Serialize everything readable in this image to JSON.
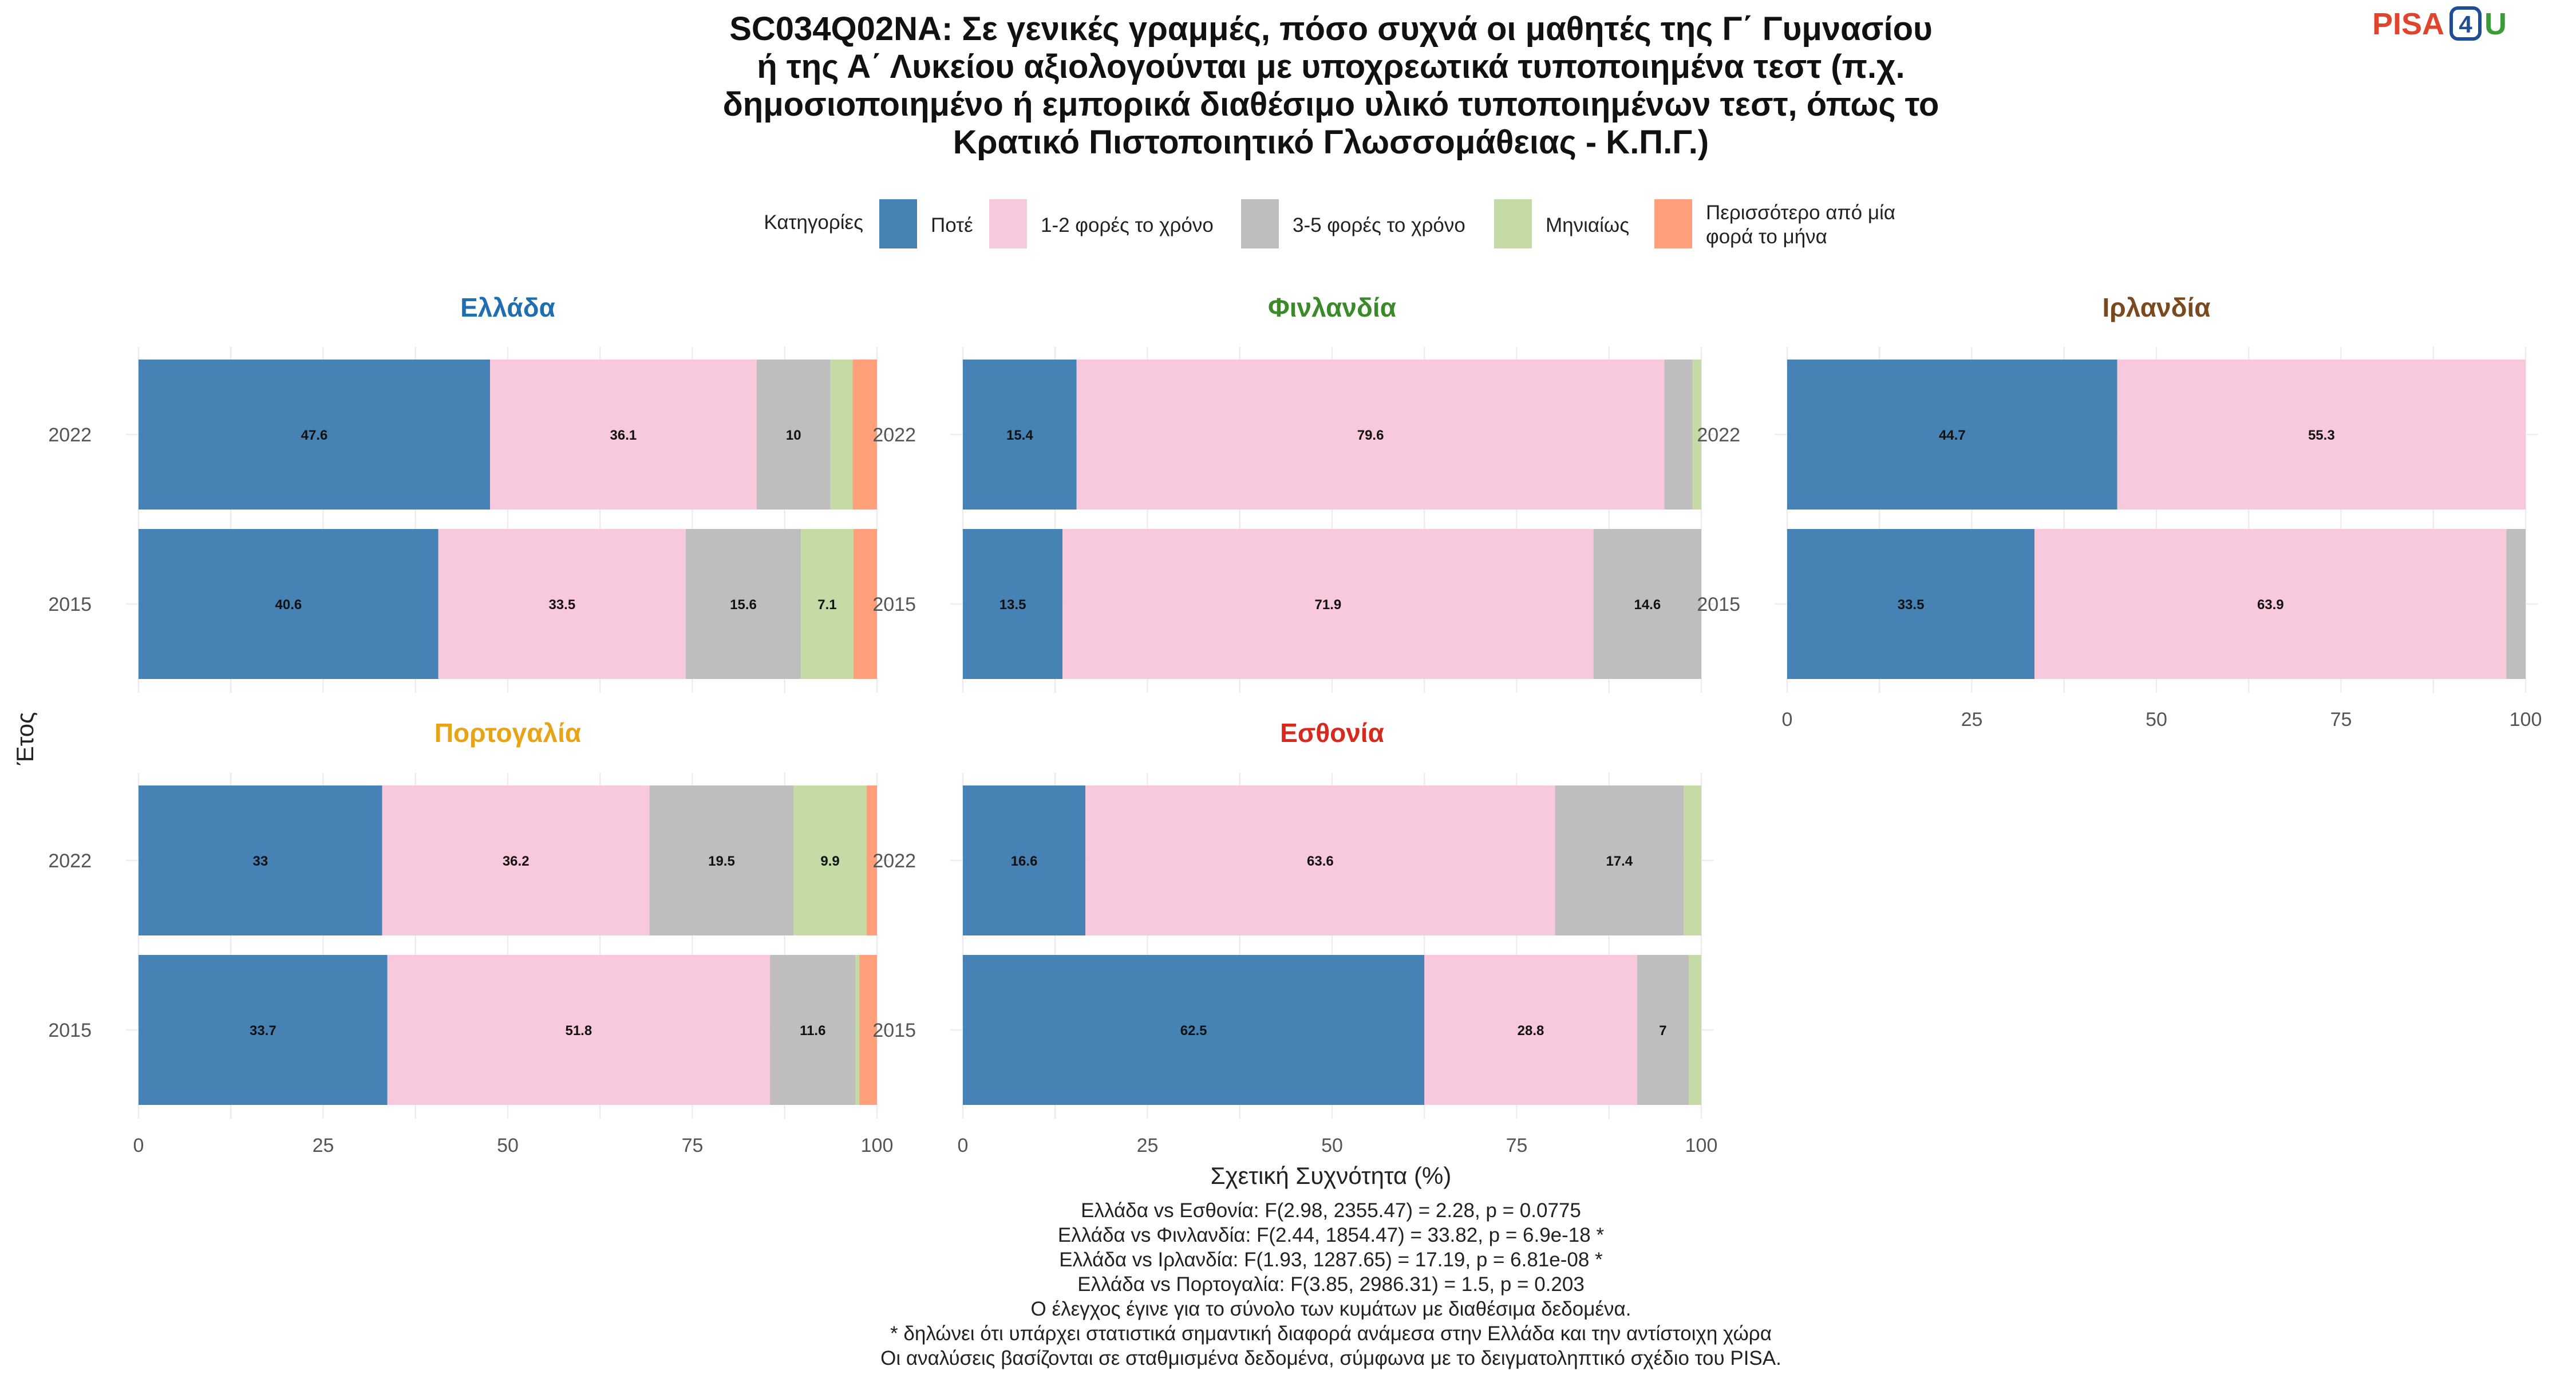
{
  "logo": {
    "brand": "PISA",
    "digit": "4",
    "suffix": "U"
  },
  "colors": {
    "Ποτέ": "#4682b4",
    "1-2 φορές το χρόνο": "#f8c8dc",
    "3-5 φορές το χρόνο": "#bebebe",
    "Μηνιαίως": "#c5dba5",
    "Περισσότερο από μία φορά το μήνα": "#ffa07a"
  },
  "chart_data": {
    "type": "bar",
    "orientation": "horizontal",
    "stacked": true,
    "title_lines": [
      "SC034Q02NA: Σε γενικές γραμμές, πόσο συχνά οι μαθητές της Γ΄ Γυμνασίου",
      "ή της Α΄ Λυκείου αξιολογούνται με υποχρεωτικά τυποποιημένα τεστ (π.χ.",
      "δημοσιοποιημένο ή εμπορικά διαθέσιμο υλικό τυποποιημένων τεστ, όπως το",
      "Κρατικό Πιστοποιητικό Γλωσσομάθειας - Κ.Π.Γ.)"
    ],
    "legend": {
      "title": "Κατηγορίες",
      "placement": "top",
      "entries": [
        {
          "key": "Ποτέ",
          "label": [
            "Ποτέ"
          ]
        },
        {
          "key": "1-2 φορές το χρόνο",
          "label": [
            "1-2 φορές το χρόνο"
          ]
        },
        {
          "key": "3-5 φορές το χρόνο",
          "label": [
            "3-5 φορές το χρόνο"
          ]
        },
        {
          "key": "Μηνιαίως",
          "label": [
            "Μηνιαίως"
          ]
        },
        {
          "key": "Περισσότερο από μία φορά το μήνα",
          "label": [
            "Περισσότερο από μία",
            "φορά το μήνα"
          ]
        }
      ]
    },
    "xlabel": "Σχετική Συχνότητα (%)",
    "ylabel": "Έτος",
    "xlim": [
      0,
      100
    ],
    "xticks": [
      0,
      25,
      50,
      75,
      100
    ],
    "grid": true,
    "categories": [
      "Ποτέ",
      "1-2 φορές το χρόνο",
      "3-5 φορές το χρόνο",
      "Μηνιαίως",
      "Περισσότερο από μία φορά το μήνα"
    ],
    "facets": [
      {
        "country": "Ελλάδα",
        "title_color": "#1f6fb0",
        "show_x_axis": false,
        "rows": [
          {
            "year": "2022",
            "values": [
              47.6,
              36.1,
              10,
              3.0,
              3.3
            ],
            "labels": [
              "47.6",
              "36.1",
              "10",
              "",
              ""
            ]
          },
          {
            "year": "2015",
            "values": [
              40.6,
              33.5,
              15.6,
              7.1,
              3.2
            ],
            "labels": [
              "40.6",
              "33.5",
              "15.6",
              "7.1",
              ""
            ]
          }
        ]
      },
      {
        "country": "Φινλανδία",
        "title_color": "#3b8a2a",
        "show_x_axis": false,
        "rows": [
          {
            "year": "2022",
            "values": [
              15.4,
              79.6,
              3.8,
              1.2,
              0
            ],
            "labels": [
              "15.4",
              "79.6",
              "",
              "",
              ""
            ]
          },
          {
            "year": "2015",
            "values": [
              13.5,
              71.9,
              14.6,
              0,
              0
            ],
            "labels": [
              "13.5",
              "71.9",
              "14.6",
              "",
              ""
            ]
          }
        ]
      },
      {
        "country": "Ιρλανδία",
        "title_color": "#7a4a1e",
        "show_x_axis": true,
        "rows": [
          {
            "year": "2022",
            "values": [
              44.7,
              55.3,
              0,
              0,
              0
            ],
            "labels": [
              "44.7",
              "55.3",
              "",
              "",
              ""
            ]
          },
          {
            "year": "2015",
            "values": [
              33.5,
              63.9,
              2.6,
              0,
              0
            ],
            "labels": [
              "33.5",
              "63.9",
              "",
              "",
              ""
            ]
          }
        ]
      },
      {
        "country": "Πορτογαλία",
        "title_color": "#e8a317",
        "show_x_axis": true,
        "rows": [
          {
            "year": "2022",
            "values": [
              33,
              36.2,
              19.5,
              9.9,
              1.4
            ],
            "labels": [
              "33",
              "36.2",
              "19.5",
              "9.9",
              ""
            ]
          },
          {
            "year": "2015",
            "values": [
              33.7,
              51.8,
              11.6,
              0.5,
              2.4
            ],
            "labels": [
              "33.7",
              "51.8",
              "11.6",
              "",
              ""
            ]
          }
        ]
      },
      {
        "country": "Εσθονία",
        "title_color": "#d9281c",
        "show_x_axis": true,
        "rows": [
          {
            "year": "2022",
            "values": [
              16.6,
              63.6,
              17.4,
              2.4,
              0
            ],
            "labels": [
              "16.6",
              "63.6",
              "17.4",
              "",
              ""
            ]
          },
          {
            "year": "2015",
            "values": [
              62.5,
              28.8,
              7,
              1.7,
              0
            ],
            "labels": [
              "62.5",
              "28.8",
              "7",
              "",
              ""
            ]
          }
        ]
      }
    ],
    "caption_lines": [
      "Ελλάδα vs Εσθονία: F(2.98, 2355.47) = 2.28, p = 0.0775",
      "Ελλάδα vs Φινλανδία: F(2.44, 1854.47) = 33.82, p = 6.9e-18 *",
      "Ελλάδα vs Ιρλανδία: F(1.93, 1287.65) = 17.19, p = 6.81e-08 *",
      "Ελλάδα vs Πορτογαλία: F(3.85, 2986.31) = 1.5, p = 0.203",
      "Ο έλεγχος έγινε για το σύνολο των κυμάτων με διαθέσιμα δεδομένα.",
      "* δηλώνει ότι υπάρχει στατιστικά σημαντική διαφορά ανάμεσα στην Ελλάδα και την αντίστοιχη χώρα",
      "Οι αναλύσεις βασίζονται σε σταθμισμένα δεδομένα, σύμφωνα με το δειγματοληπτικό σχέδιο του PISA."
    ]
  }
}
